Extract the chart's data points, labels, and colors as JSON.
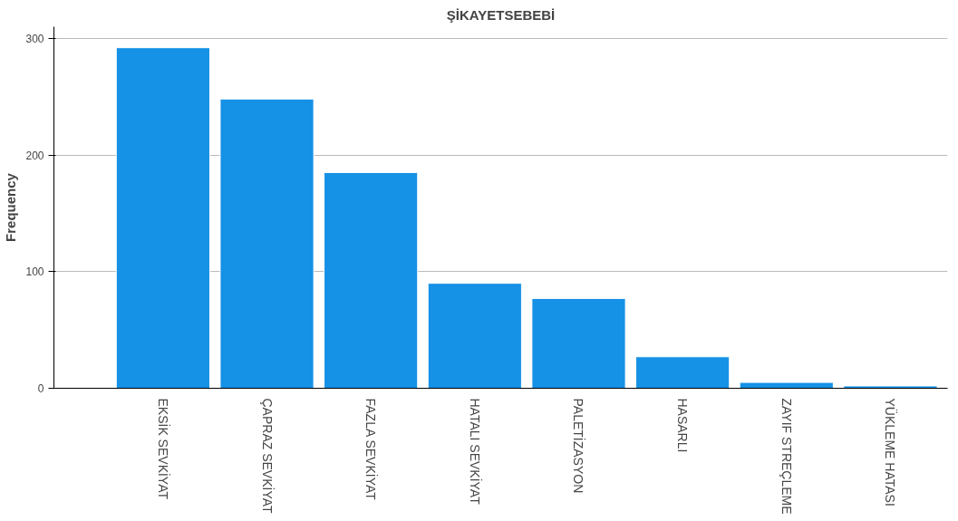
{
  "chart_data": {
    "type": "bar",
    "title": "ŞİKAYETSEBEBİ",
    "ylabel": "Frequency",
    "categories": [
      "EKSİK SEVKİYAT",
      "ÇAPRAZ SEVKİYAT",
      "FAZLA SEVKİYAT",
      "HATALI SEVKİYAT",
      "PALETİZASYON",
      "HASARLI",
      "ZAYIF STREÇLEME",
      "YÜKLEME HATASI"
    ],
    "values": [
      292,
      248,
      185,
      90,
      77,
      27,
      5,
      2
    ],
    "color": "#1591e6",
    "ylim": [
      0,
      310
    ],
    "yticks": [
      0,
      100,
      200,
      300
    ],
    "grid": "y"
  }
}
